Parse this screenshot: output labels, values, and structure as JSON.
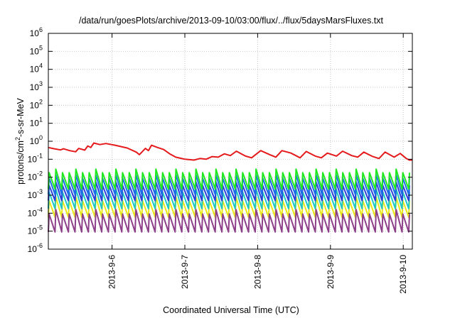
{
  "chart_data": {
    "type": "line",
    "title": "/data/run/goesPlots/archive/2013-09-10/03:00/flux/../flux/5daysMarsFluxes.txt",
    "xlabel": "Coordinated Universal Time (UTC)",
    "ylabel": {
      "prefix": "protons/cm",
      "sup": "2",
      "suffix": "-s-sr-MeV"
    },
    "y_scale": "log",
    "ylim": [
      1e-06,
      1000000.0
    ],
    "y_ticks": [
      {
        "value": 1e-06,
        "base": "10",
        "exp": "-6"
      },
      {
        "value": 1e-05,
        "base": "10",
        "exp": "-5"
      },
      {
        "value": 0.0001,
        "base": "10",
        "exp": "-4"
      },
      {
        "value": 0.001,
        "base": "10",
        "exp": "-3"
      },
      {
        "value": 0.01,
        "base": "10",
        "exp": "-2"
      },
      {
        "value": 0.1,
        "base": "10",
        "exp": "-1"
      },
      {
        "value": 1,
        "base": "10",
        "exp": "0"
      },
      {
        "value": 10,
        "base": "10",
        "exp": "1"
      },
      {
        "value": 100,
        "base": "10",
        "exp": "2"
      },
      {
        "value": 1000,
        "base": "10",
        "exp": "3"
      },
      {
        "value": 10000,
        "base": "10",
        "exp": "4"
      },
      {
        "value": 100000,
        "base": "10",
        "exp": "5"
      },
      {
        "value": 1000000,
        "base": "10",
        "exp": "6"
      }
    ],
    "xlim": [
      "2013-09-05T03:00",
      "2013-09-10T03:00"
    ],
    "x_ticks": [
      {
        "value": "2013-09-06T00:00",
        "label": "2013-9-6"
      },
      {
        "value": "2013-09-07T00:00",
        "label": "2013-9-7"
      },
      {
        "value": "2013-09-08T00:00",
        "label": "2013-9-8"
      },
      {
        "value": "2013-09-09T00:00",
        "label": "2013-9-9"
      },
      {
        "value": "2013-09-10T00:00",
        "label": "2013-9-10"
      }
    ],
    "grid": true,
    "legend": "none",
    "series": [
      {
        "color": "#e41a1c",
        "points": [
          [
            "2013-09-05T03:00",
            0.45
          ],
          [
            "2013-09-05T05:00",
            0.38
          ],
          [
            "2013-09-05T07:00",
            0.33
          ],
          [
            "2013-09-05T08:00",
            0.38
          ],
          [
            "2013-09-05T10:00",
            0.3
          ],
          [
            "2013-09-05T12:00",
            0.26
          ],
          [
            "2013-09-05T13:00",
            0.4
          ],
          [
            "2013-09-05T15:00",
            0.32
          ],
          [
            "2013-09-05T16:00",
            0.55
          ],
          [
            "2013-09-05T17:00",
            0.45
          ],
          [
            "2013-09-05T18:00",
            0.8
          ],
          [
            "2013-09-05T20:00",
            0.65
          ],
          [
            "2013-09-05T22:00",
            0.75
          ],
          [
            "2013-09-06T01:00",
            0.6
          ],
          [
            "2013-09-06T05:00",
            0.42
          ],
          [
            "2013-09-06T08:00",
            0.25
          ],
          [
            "2013-09-06T09:00",
            0.18
          ],
          [
            "2013-09-06T11:00",
            0.4
          ],
          [
            "2013-09-06T12:00",
            0.3
          ],
          [
            "2013-09-06T13:00",
            0.6
          ],
          [
            "2013-09-06T15:00",
            0.45
          ],
          [
            "2013-09-06T17:00",
            0.35
          ],
          [
            "2013-09-06T19:00",
            0.2
          ],
          [
            "2013-09-06T21:00",
            0.13
          ],
          [
            "2013-09-07T00:00",
            0.1
          ],
          [
            "2013-09-07T03:00",
            0.09
          ],
          [
            "2013-09-07T05:00",
            0.11
          ],
          [
            "2013-09-07T07:00",
            0.1
          ],
          [
            "2013-09-07T09:00",
            0.14
          ],
          [
            "2013-09-07T11:00",
            0.13
          ],
          [
            "2013-09-07T13:00",
            0.2
          ],
          [
            "2013-09-07T15:00",
            0.16
          ],
          [
            "2013-09-07T17:00",
            0.28
          ],
          [
            "2013-09-07T20:00",
            0.15
          ],
          [
            "2013-09-07T22:00",
            0.12
          ],
          [
            "2013-09-08T01:00",
            0.3
          ],
          [
            "2013-09-08T04:00",
            0.18
          ],
          [
            "2013-09-08T06:00",
            0.13
          ],
          [
            "2013-09-08T08:00",
            0.3
          ],
          [
            "2013-09-08T11:00",
            0.22
          ],
          [
            "2013-09-08T14:00",
            0.12
          ],
          [
            "2013-09-08T16:00",
            0.27
          ],
          [
            "2013-09-08T19:00",
            0.15
          ],
          [
            "2013-09-08T21:00",
            0.12
          ],
          [
            "2013-09-08T23:00",
            0.22
          ],
          [
            "2013-09-09T02:00",
            0.15
          ],
          [
            "2013-09-09T04:00",
            0.28
          ],
          [
            "2013-09-09T07:00",
            0.16
          ],
          [
            "2013-09-09T09:00",
            0.13
          ],
          [
            "2013-09-09T11:00",
            0.25
          ],
          [
            "2013-09-09T14:00",
            0.14
          ],
          [
            "2013-09-09T16:00",
            0.11
          ],
          [
            "2013-09-09T18:00",
            0.25
          ],
          [
            "2013-09-09T21:00",
            0.13
          ],
          [
            "2013-09-09T23:00",
            0.21
          ],
          [
            "2013-09-10T01:00",
            0.11
          ],
          [
            "2013-09-10T02:00",
            0.09
          ],
          [
            "2013-09-10T03:00",
            0.09
          ]
        ]
      },
      {
        "color": "#1fe81f",
        "baseline": 0.0022,
        "peaks": [
          0.018,
          0.028
        ],
        "period_hours": 2.2
      },
      {
        "color": "#1a6fe8",
        "baseline": 0.0011,
        "peaks": [
          0.009,
          0.014
        ],
        "period_hours": 2.2
      },
      {
        "color": "#2d3fd6",
        "baseline": 0.0005,
        "peaks": [
          0.0035,
          0.0055
        ],
        "period_hours": 2.2
      },
      {
        "color": "#1fc8c0",
        "baseline": 0.00018,
        "peaks": [
          0.0015,
          0.0022
        ],
        "period_hours": 2.2
      },
      {
        "color": "#e8e81a",
        "baseline": 6e-05,
        "peaks": [
          0.0005,
          0.0008
        ],
        "period_hours": 2.2
      },
      {
        "color": "#8e3f8a",
        "baseline": 9e-06,
        "peaks": [
          9e-05,
          0.00016
        ],
        "period_hours": 2.2
      }
    ]
  }
}
